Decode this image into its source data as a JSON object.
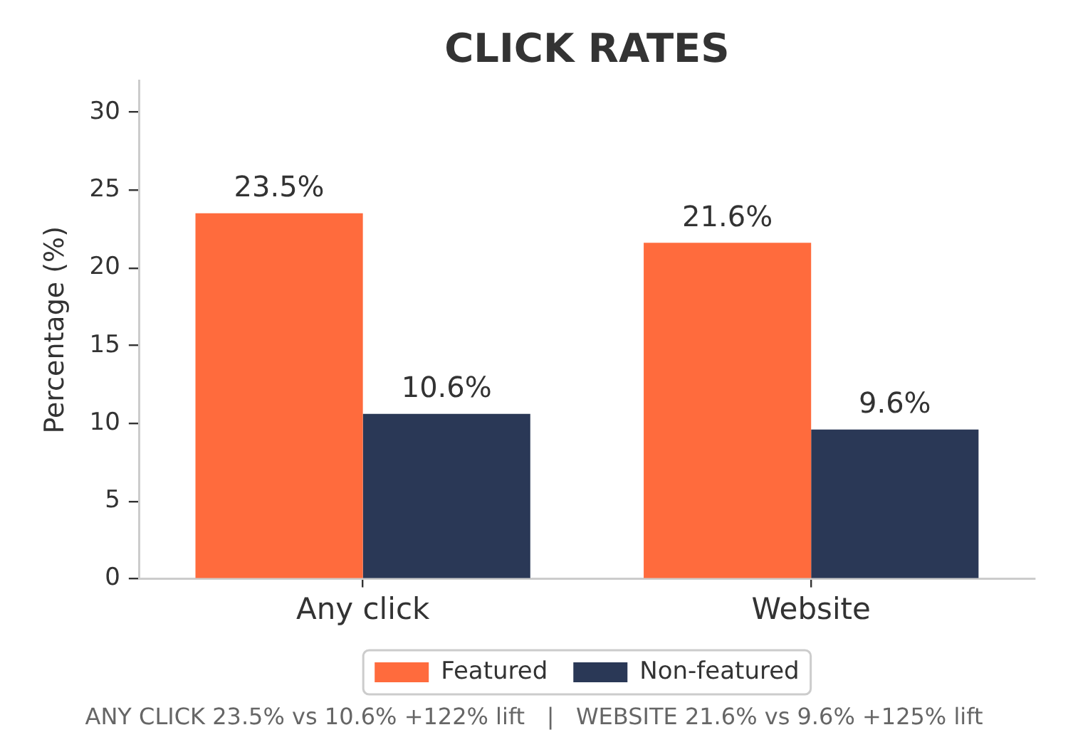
{
  "chart_data": {
    "type": "bar",
    "title": "CLICK RATES",
    "ylabel": "Percentage (%)",
    "categories": [
      "Any click",
      "Website"
    ],
    "series": [
      {
        "name": "Featured",
        "color": "#ff6b3d",
        "values": [
          23.5,
          21.6
        ],
        "value_labels": [
          "23.5%",
          "21.6%"
        ]
      },
      {
        "name": "Non-featured",
        "color": "#2a3856",
        "values": [
          10.6,
          9.6
        ],
        "value_labels": [
          "10.6%",
          "9.6%"
        ]
      }
    ],
    "ylim": [
      0,
      32
    ],
    "yticks": [
      0,
      5,
      10,
      15,
      20,
      25,
      30
    ],
    "grid": false,
    "legend": "bottom",
    "annotations": [
      "ANY CLICK 23.5% vs 10.6% +122% lift   |   WEBSITE 21.6% vs 9.6% +125% lift"
    ]
  }
}
